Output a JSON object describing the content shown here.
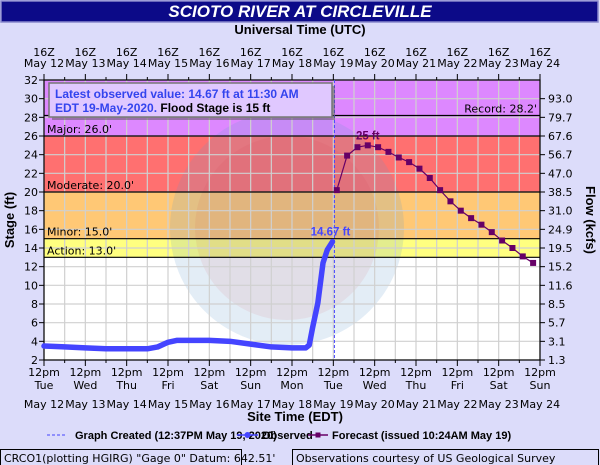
{
  "chart_data": {
    "type": "line",
    "title": "SCIOTO RIVER AT CIRCLEVILLE",
    "top_axis_title": "Universal Time (UTC)",
    "bottom_axis_title": "Site Time (EDT)",
    "ylabel": "Stage (ft)",
    "y2label": "Flow (kcfs)",
    "ylim": [
      2,
      32
    ],
    "y_ticks": [
      2,
      4,
      6,
      8,
      10,
      12,
      14,
      16,
      18,
      20,
      22,
      24,
      26,
      28,
      30,
      32
    ],
    "flow_ticks": [
      {
        "stage": 2,
        "label": "1.3"
      },
      {
        "stage": 4,
        "label": "3.1"
      },
      {
        "stage": 6,
        "label": "5.7"
      },
      {
        "stage": 8,
        "label": "8.5"
      },
      {
        "stage": 10,
        "label": "11.6"
      },
      {
        "stage": 12,
        "label": "15.2"
      },
      {
        "stage": 14,
        "label": "19.5"
      },
      {
        "stage": 16,
        "label": "24.9"
      },
      {
        "stage": 18,
        "label": "31.0"
      },
      {
        "stage": 20,
        "label": "38.5"
      },
      {
        "stage": 22,
        "label": "47.0"
      },
      {
        "stage": 24,
        "label": "56.7"
      },
      {
        "stage": 26,
        "label": "67.6"
      },
      {
        "stage": 28,
        "label": "79.7"
      },
      {
        "stage": 30,
        "label": "93.0"
      }
    ],
    "x_start": "05-12 12:00",
    "x_days": 12,
    "x_ticks": [
      {
        "utc": "16Z",
        "date": "May 12",
        "local": "12pm",
        "dow": "Tue"
      },
      {
        "utc": "16Z",
        "date": "May 13",
        "local": "12pm",
        "dow": "Wed"
      },
      {
        "utc": "16Z",
        "date": "May 14",
        "local": "12pm",
        "dow": "Thu"
      },
      {
        "utc": "16Z",
        "date": "May 15",
        "local": "12pm",
        "dow": "Fri"
      },
      {
        "utc": "16Z",
        "date": "May 16",
        "local": "12pm",
        "dow": "Sat"
      },
      {
        "utc": "16Z",
        "date": "May 17",
        "local": "12pm",
        "dow": "Sun"
      },
      {
        "utc": "16Z",
        "date": "May 18",
        "local": "12pm",
        "dow": "Mon"
      },
      {
        "utc": "16Z",
        "date": "May 19",
        "local": "12pm",
        "dow": "Tue"
      },
      {
        "utc": "16Z",
        "date": "May 20",
        "local": "12pm",
        "dow": "Wed"
      },
      {
        "utc": "16Z",
        "date": "May 21",
        "local": "12pm",
        "dow": "Thu"
      },
      {
        "utc": "16Z",
        "date": "May 22",
        "local": "12pm",
        "dow": "Fri"
      },
      {
        "utc": "16Z",
        "date": "May 23",
        "local": "12pm",
        "dow": "Sat"
      },
      {
        "utc": "16Z",
        "date": "May 24",
        "local": "12pm",
        "dow": "Sun"
      }
    ],
    "flood_categories": [
      {
        "name": "Major",
        "label": "Major: 26.0'",
        "from": 26,
        "to": 32,
        "color": "#dd88ff"
      },
      {
        "name": "Moderate",
        "label": "Moderate: 20.0'",
        "from": 20,
        "to": 26,
        "color": "#ff7070"
      },
      {
        "name": "Minor",
        "label": "Minor: 15.0'",
        "from": 15,
        "to": 20,
        "color": "#ffc875"
      },
      {
        "name": "Action",
        "label": "Action: 13.0'",
        "from": 13,
        "to": 15,
        "color": "#ffff80"
      }
    ],
    "record": {
      "value": 28.2,
      "label": "Record: 28.2'"
    },
    "graph_created": "05-19 12:37",
    "series": [
      {
        "name": "Observed",
        "color": "#4444ff",
        "points": [
          [
            "05-12 12:00",
            3.5
          ],
          [
            "05-13 00:00",
            3.4
          ],
          [
            "05-13 12:00",
            3.3
          ],
          [
            "05-14 00:00",
            3.2
          ],
          [
            "05-14 12:00",
            3.2
          ],
          [
            "05-15 00:00",
            3.2
          ],
          [
            "05-15 06:00",
            3.4
          ],
          [
            "05-15 12:00",
            3.9
          ],
          [
            "05-15 17:00",
            4.1
          ],
          [
            "05-16 12:00",
            4.1
          ],
          [
            "05-17 00:00",
            4.0
          ],
          [
            "05-17 12:00",
            3.7
          ],
          [
            "05-18 00:00",
            3.4
          ],
          [
            "05-18 12:00",
            3.3
          ],
          [
            "05-18 20:00",
            3.3
          ],
          [
            "05-18 22:00",
            3.6
          ],
          [
            "05-19 00:00",
            5.5
          ],
          [
            "05-19 03:00",
            8.1
          ],
          [
            "05-19 06:00",
            12.4
          ],
          [
            "05-19 08:30",
            13.8
          ],
          [
            "05-19 11:30",
            14.67
          ]
        ],
        "label": "14.67 ft"
      },
      {
        "name": "Forecast",
        "color": "#660066",
        "points": [
          [
            "05-19 14:00",
            20.2
          ],
          [
            "05-19 20:00",
            23.9
          ],
          [
            "05-20 02:00",
            24.8
          ],
          [
            "05-20 08:00",
            25.0
          ],
          [
            "05-20 14:00",
            24.8
          ],
          [
            "05-20 20:00",
            24.3
          ],
          [
            "05-21 02:00",
            23.7
          ],
          [
            "05-21 08:00",
            23.2
          ],
          [
            "05-21 14:00",
            22.5
          ],
          [
            "05-21 20:00",
            21.5
          ],
          [
            "05-22 02:00",
            20.2
          ],
          [
            "05-22 08:00",
            19.0
          ],
          [
            "05-22 14:00",
            18.0
          ],
          [
            "05-22 20:00",
            17.2
          ],
          [
            "05-23 02:00",
            16.5
          ],
          [
            "05-23 08:00",
            15.7
          ],
          [
            "05-23 14:00",
            14.8
          ],
          [
            "05-23 20:00",
            14.0
          ],
          [
            "05-24 02:00",
            13.1
          ],
          [
            "05-24 08:00",
            12.4
          ]
        ],
        "label": "25 ft"
      }
    ],
    "latest_box": {
      "line1": "Latest observed value: 14.67 ft at 11:30 AM",
      "line2a": "EDT 19-May-2020.",
      "line2b": "Flood Stage is 15 ft"
    },
    "legend": {
      "created": "Graph Created (12:37PM May 19, 2020)",
      "observed": "Observed",
      "forecast": "Forecast (issued 10:24AM May 19)"
    }
  },
  "footer": {
    "left": "CRCO1(plotting HGIRG) \"Gage 0\" Datum: 642.51'",
    "right": "Observations courtesy of US Geological Survey"
  }
}
